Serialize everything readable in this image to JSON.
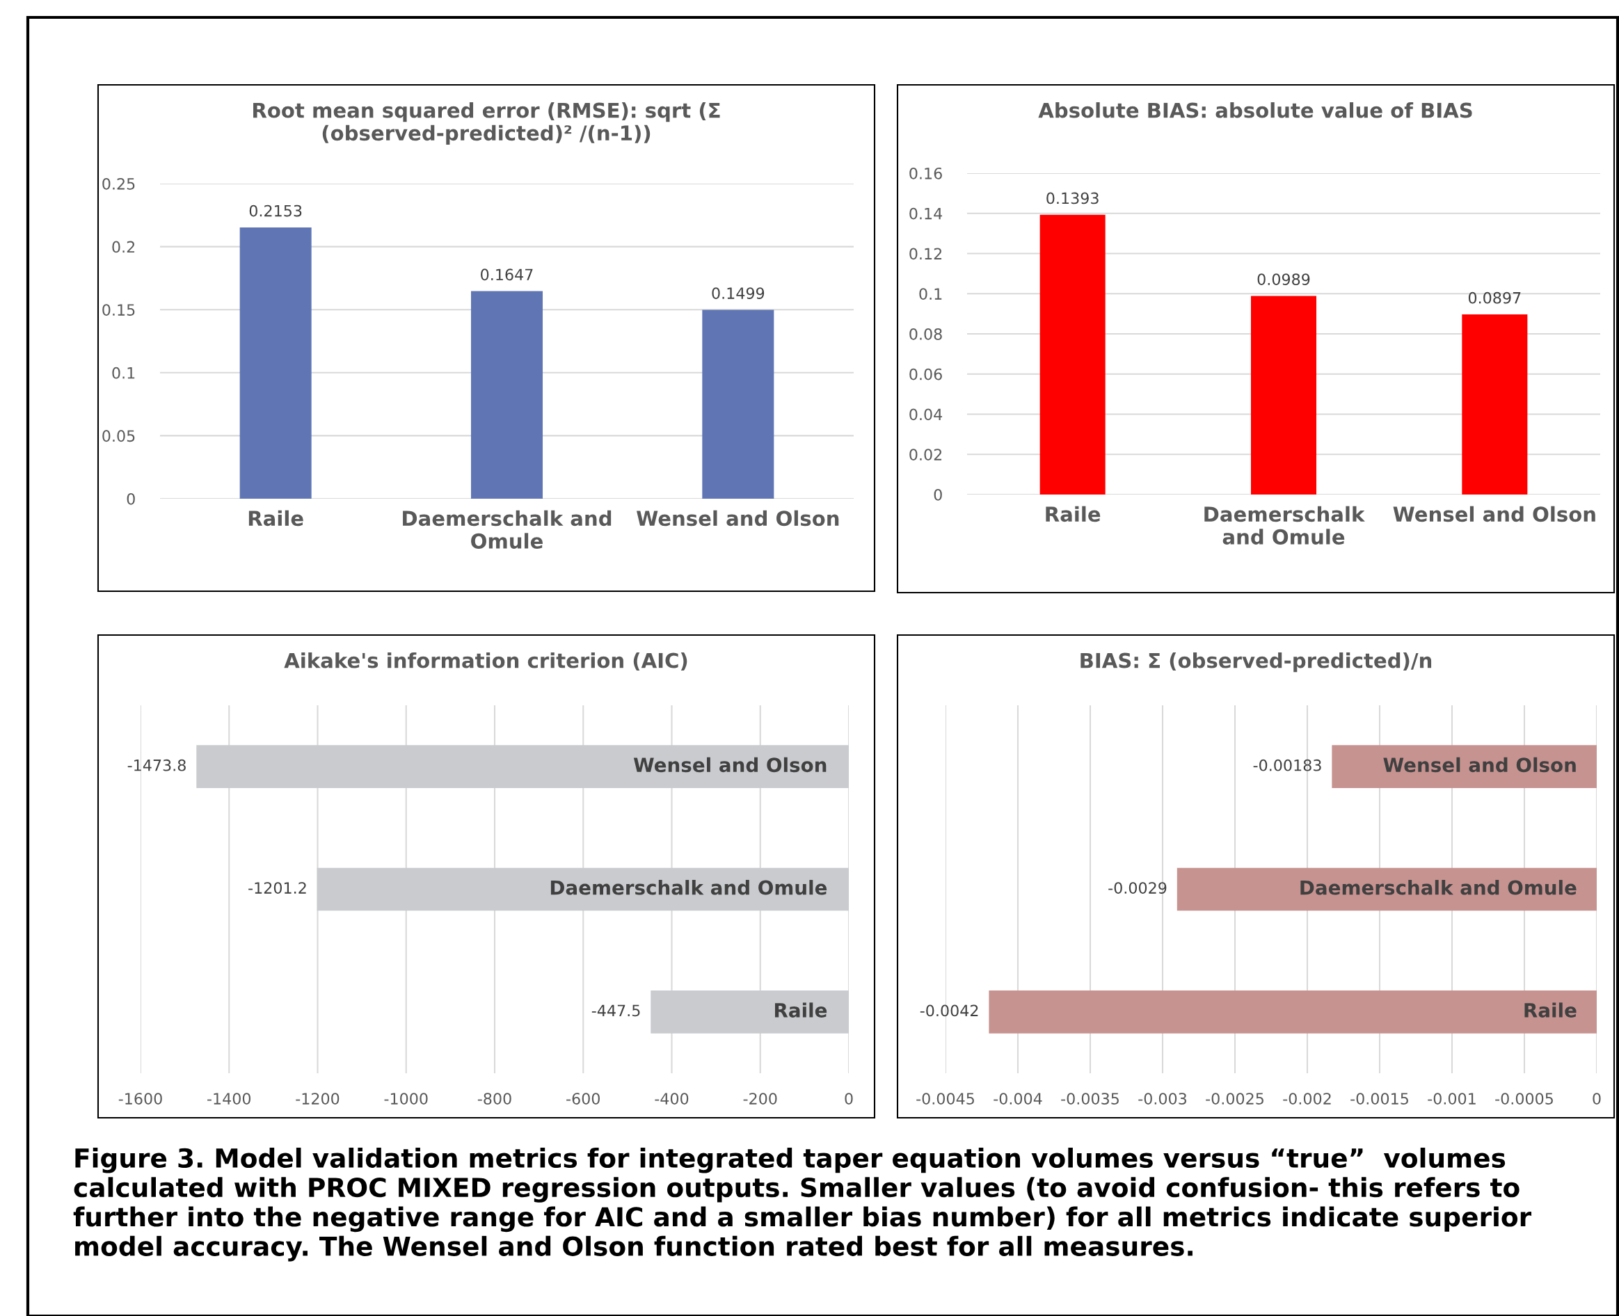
{
  "chart_data": [
    {
      "type": "bar",
      "title": "Root mean squared error (RMSE): sqrt (Σ (observed-predicted)² /(n-1))",
      "categories": [
        "Raile",
        "Daemerschalk and Omule",
        "Wensel and Olson"
      ],
      "values": [
        0.2153,
        0.1647,
        0.1499
      ],
      "color": "#6076b4",
      "ylim": [
        0,
        0.25
      ],
      "yticks": [
        0,
        0.05,
        0.1,
        0.15,
        0.2,
        0.25
      ],
      "grid": "y",
      "data_labels": true
    },
    {
      "type": "bar",
      "title": "Absolute BIAS: absolute value of BIAS",
      "categories": [
        "Raile",
        "Daemerschalk and Omule",
        "Wensel and Olson"
      ],
      "values": [
        0.1393,
        0.0989,
        0.0897
      ],
      "color": "#ff0000",
      "ylim": [
        0,
        0.16
      ],
      "yticks": [
        0,
        0.02,
        0.04,
        0.06,
        0.08,
        0.1,
        0.12,
        0.14,
        0.16
      ],
      "grid": "y",
      "data_labels": true
    },
    {
      "type": "bar",
      "orientation": "horizontal",
      "title": "Aikake's information criterion (AIC)",
      "categories": [
        "Wensel and Olson",
        "Daemerschalk and Omule",
        "Raile"
      ],
      "values": [
        -1473.8,
        -1201.2,
        -447.5
      ],
      "color": "#c9cbce",
      "xlim": [
        -1600,
        0
      ],
      "xticks": [
        -1600,
        -1400,
        -1200,
        -1000,
        -800,
        -600,
        -400,
        -200,
        0
      ],
      "grid": "x",
      "data_labels": true,
      "tick_labels": "x"
    },
    {
      "type": "bar",
      "orientation": "horizontal",
      "title": "BIAS: Σ (observed-predicted)/n",
      "categories": [
        "Wensel and Olson",
        "Daemerschalk and Omule",
        "Raile"
      ],
      "values": [
        -0.00183,
        -0.0029,
        -0.0042
      ],
      "color": "#c79391",
      "xlim": [
        -0.0045,
        0
      ],
      "xticks": [
        -0.0045,
        -0.004,
        -0.0035,
        -0.003,
        -0.0025,
        -0.002,
        -0.0015,
        -0.001,
        -0.0005,
        0
      ],
      "grid": "x",
      "data_labels": true,
      "tick_labels": "x",
      "annotations": [
        "Figure 3. Model validation metrics for integrated taper equation volumes versus “true”  volumes calculated with PROC MIXED regression outputs. Smaller values (to avoid confusion- this refers to further into the negative range for AIC and a smaller bias number) for all metrics indicate superior model accuracy. The Wensel and Olson function rated best for all measures."
      ]
    }
  ]
}
